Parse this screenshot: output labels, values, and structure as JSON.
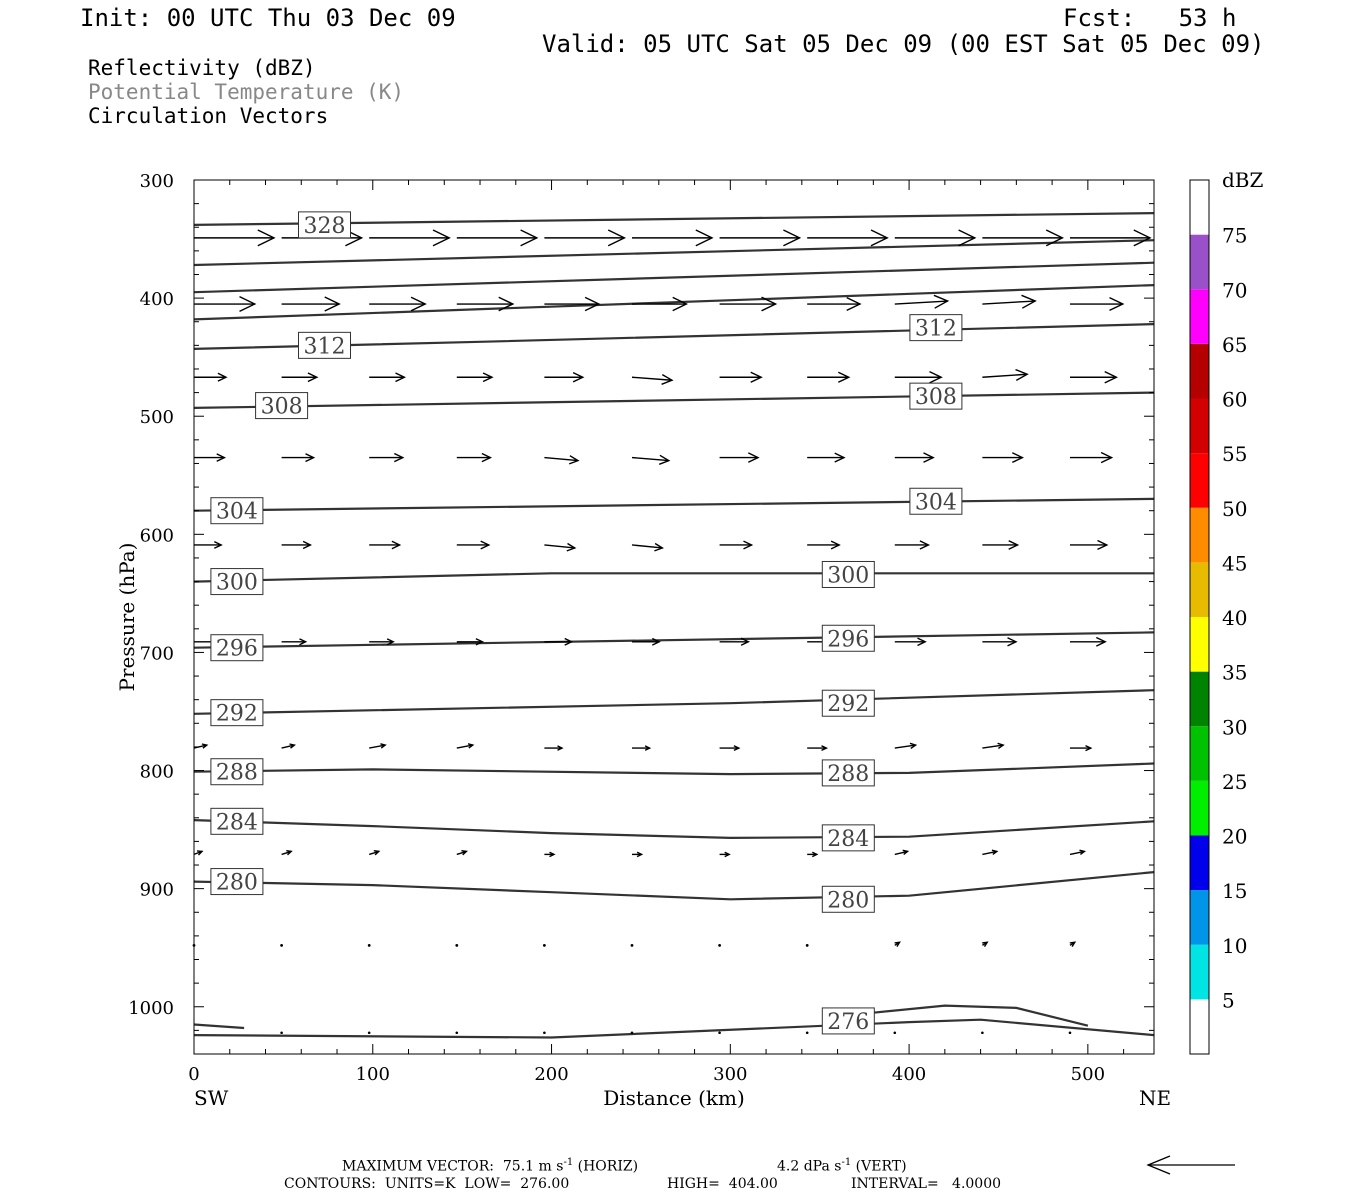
{
  "header": {
    "init": "Init: 00 UTC Thu 03 Dec 09",
    "fcst": "Fcst:   53 h",
    "valid": "Valid: 05 UTC Sat 05 Dec 09 (00 EST Sat 05 Dec 09)"
  },
  "legend": {
    "line1": "Reflectivity (dBZ)",
    "line2": "Potential Temperature (K)",
    "line3": "Circulation Vectors"
  },
  "footer": {
    "max_vector_label": "MAXIMUM VECTOR:",
    "max_horiz_value": "75.1",
    "max_horiz_unit": "m s",
    "max_horiz_sup": "-1",
    "max_horiz_tag": "(HORIZ)",
    "max_vert_value": "4.2",
    "max_vert_unit": "dPa s",
    "max_vert_sup": "-1",
    "max_vert_tag": "(VERT)",
    "contours_label": "CONTOURS:",
    "units": "UNITS=K",
    "low_label": "LOW=",
    "low_value": "276.00",
    "high_label": "HIGH=",
    "high_value": "404.00",
    "interval_label": "INTERVAL=",
    "interval_value": "4.0000"
  },
  "chart_data": {
    "type": "cross-section (contour + vectors)",
    "xlabel": "Distance (km)",
    "ylabel": "Pressure (hPa)",
    "xlim": [
      0,
      537
    ],
    "ylim": [
      300,
      1040
    ],
    "y_inverted": true,
    "x_ticks": [
      0,
      100,
      200,
      300,
      400,
      500
    ],
    "y_ticks": [
      300,
      400,
      500,
      600,
      700,
      800,
      900,
      1000
    ],
    "x_end_labels": {
      "left": "SW",
      "right": "NE"
    },
    "colorbar": {
      "title": "dBZ",
      "levels": [
        5,
        10,
        15,
        20,
        25,
        30,
        35,
        40,
        45,
        50,
        55,
        60,
        65,
        70,
        75
      ],
      "colors": [
        "#ffffff",
        "#00e4e4",
        "#0095e9",
        "#0000ea",
        "#00ee00",
        "#00c200",
        "#008300",
        "#ffff00",
        "#e6bb00",
        "#ff8c00",
        "#ff0000",
        "#d30000",
        "#b40000",
        "#ff00ff",
        "#9a50c8",
        "#ffffff"
      ]
    },
    "theta_contours": [
      {
        "value": 328,
        "label": "328",
        "points": [
          [
            0,
            338
          ],
          [
            537,
            328
          ]
        ],
        "label_at": [
          73,
          338
        ]
      },
      {
        "value": 324,
        "label": "",
        "points": [
          [
            0,
            372
          ],
          [
            537,
            351
          ]
        ]
      },
      {
        "value": 320,
        "label": "",
        "points": [
          [
            0,
            395
          ],
          [
            537,
            370
          ]
        ]
      },
      {
        "value": 316,
        "label": "",
        "points": [
          [
            0,
            418
          ],
          [
            537,
            389
          ]
        ]
      },
      {
        "value": 312,
        "label": "312",
        "points": [
          [
            0,
            443
          ],
          [
            160,
            437
          ],
          [
            537,
            422
          ]
        ],
        "label_at": [
          [
            73,
            440
          ],
          [
            415,
            425
          ]
        ]
      },
      {
        "value": 308,
        "label": "308",
        "points": [
          [
            0,
            493
          ],
          [
            537,
            480
          ]
        ],
        "label_at": [
          [
            49,
            491
          ],
          [
            415,
            483
          ]
        ]
      },
      {
        "value": 304,
        "label": "304",
        "points": [
          [
            0,
            580
          ],
          [
            537,
            570
          ]
        ],
        "label_at": [
          [
            24,
            580
          ],
          [
            415,
            572
          ]
        ]
      },
      {
        "value": 300,
        "label": "300",
        "points": [
          [
            0,
            640
          ],
          [
            200,
            633
          ],
          [
            537,
            633
          ]
        ],
        "label_at": [
          [
            24,
            640
          ],
          [
            366,
            634
          ]
        ]
      },
      {
        "value": 296,
        "label": "296",
        "points": [
          [
            0,
            696
          ],
          [
            537,
            683
          ]
        ],
        "label_at": [
          [
            24,
            696
          ],
          [
            366,
            688
          ]
        ]
      },
      {
        "value": 292,
        "label": "292",
        "points": [
          [
            0,
            752
          ],
          [
            300,
            743
          ],
          [
            537,
            732
          ]
        ],
        "label_at": [
          [
            24,
            751
          ],
          [
            366,
            743
          ]
        ]
      },
      {
        "value": 288,
        "label": "288",
        "points": [
          [
            0,
            801
          ],
          [
            100,
            799
          ],
          [
            300,
            803
          ],
          [
            400,
            802
          ],
          [
            537,
            794
          ]
        ],
        "label_at": [
          [
            24,
            801
          ],
          [
            366,
            802
          ]
        ]
      },
      {
        "value": 284,
        "label": "284",
        "points": [
          [
            0,
            842
          ],
          [
            100,
            847
          ],
          [
            200,
            853
          ],
          [
            300,
            857
          ],
          [
            400,
            856
          ],
          [
            537,
            843
          ]
        ],
        "label_at": [
          [
            24,
            843
          ],
          [
            366,
            857
          ]
        ]
      },
      {
        "value": 280,
        "label": "280",
        "points": [
          [
            0,
            894
          ],
          [
            100,
            897
          ],
          [
            200,
            903
          ],
          [
            300,
            909
          ],
          [
            400,
            906
          ],
          [
            537,
            886
          ]
        ],
        "label_at": [
          [
            24,
            894
          ],
          [
            366,
            909
          ]
        ]
      },
      {
        "value": 276,
        "label": "276",
        "points": [
          [
            0,
            1024
          ],
          [
            200,
            1026
          ],
          [
            400,
            1013
          ],
          [
            440,
            1011
          ],
          [
            537,
            1024
          ]
        ],
        "label_at": [
          [
            366,
            1012
          ]
        ]
      },
      {
        "value": 276,
        "label": "",
        "points": [
          [
            0,
            1015
          ],
          [
            28,
            1018
          ]
        ]
      },
      {
        "value": 276,
        "label": "",
        "points": [
          [
            380,
            1005
          ],
          [
            420,
            999
          ],
          [
            460,
            1001
          ],
          [
            500,
            1016
          ]
        ]
      }
    ],
    "vectors": {
      "x_positions": [
        0,
        49,
        98,
        147,
        196,
        245,
        294,
        343,
        392,
        441,
        490
      ],
      "rows": [
        {
          "p": 349,
          "u": [
            0.5,
            0.5,
            0.5,
            0.5,
            0.5,
            0.5,
            0.5,
            0.5,
            0.5,
            0.5,
            0.5
          ],
          "w": [
            0,
            0,
            0,
            0,
            0,
            0,
            0,
            0,
            0,
            0,
            0
          ]
        },
        {
          "p": 405,
          "u": [
            0.38,
            0.36,
            0.35,
            0.35,
            0.34,
            0.34,
            0.35,
            0.33,
            0.33,
            0.33,
            0.33
          ],
          "w": [
            0,
            0,
            0,
            0,
            0,
            0,
            0,
            0,
            -1,
            -1,
            0
          ]
        },
        {
          "p": 467,
          "u": [
            0.2,
            0.22,
            0.22,
            0.22,
            0.24,
            0.25,
            0.26,
            0.26,
            0.29,
            0.28,
            0.29
          ],
          "w": [
            0,
            0,
            0,
            0,
            0,
            1,
            0,
            0,
            0,
            -1,
            0
          ]
        },
        {
          "p": 535,
          "u": [
            0.19,
            0.2,
            0.21,
            0.21,
            0.21,
            0.23,
            0.24,
            0.23,
            0.24,
            0.25,
            0.26
          ],
          "w": [
            0,
            0,
            0,
            0,
            1,
            1,
            0,
            0,
            0,
            0,
            0
          ]
        },
        {
          "p": 609,
          "u": [
            0.17,
            0.18,
            0.19,
            0.2,
            0.19,
            0.19,
            0.2,
            0.2,
            0.21,
            0.22,
            0.23
          ],
          "w": [
            0,
            0,
            0,
            0,
            1,
            1,
            0,
            0,
            0,
            0,
            0
          ]
        },
        {
          "p": 691,
          "u": [
            0.15,
            0.15,
            0.15,
            0.16,
            0.17,
            0.17,
            0.18,
            0.18,
            0.19,
            0.21,
            0.22
          ],
          "w": [
            0,
            0,
            0,
            0,
            0,
            0,
            0,
            0,
            0,
            0,
            0
          ]
        },
        {
          "p": 781,
          "u": [
            0.08,
            0.08,
            0.1,
            0.1,
            0.11,
            0.11,
            0.12,
            0.12,
            0.13,
            0.13,
            0.13
          ],
          "w": [
            -1,
            -1,
            -1,
            -1,
            0,
            0,
            0,
            0,
            -1,
            -1,
            0
          ]
        },
        {
          "p": 871,
          "u": [
            0.05,
            0.06,
            0.06,
            0.06,
            0.06,
            0.06,
            0.06,
            0.06,
            0.08,
            0.09,
            0.09
          ],
          "w": [
            -1,
            -1,
            -1,
            -1,
            0,
            0,
            0,
            0,
            -1,
            -1,
            -1
          ]
        },
        {
          "p": 948,
          "u": [
            0.01,
            0.01,
            0.01,
            0.01,
            0.01,
            0.01,
            0.01,
            0.02,
            0.03,
            0.03,
            0.03
          ],
          "w": [
            0,
            0,
            0,
            0,
            0,
            0,
            0,
            0,
            -1,
            -1,
            -1
          ]
        }
      ]
    },
    "surface_dots": {
      "p": 1022,
      "x": [
        49,
        98,
        147,
        196,
        245,
        294,
        343,
        392,
        441,
        490
      ]
    }
  }
}
